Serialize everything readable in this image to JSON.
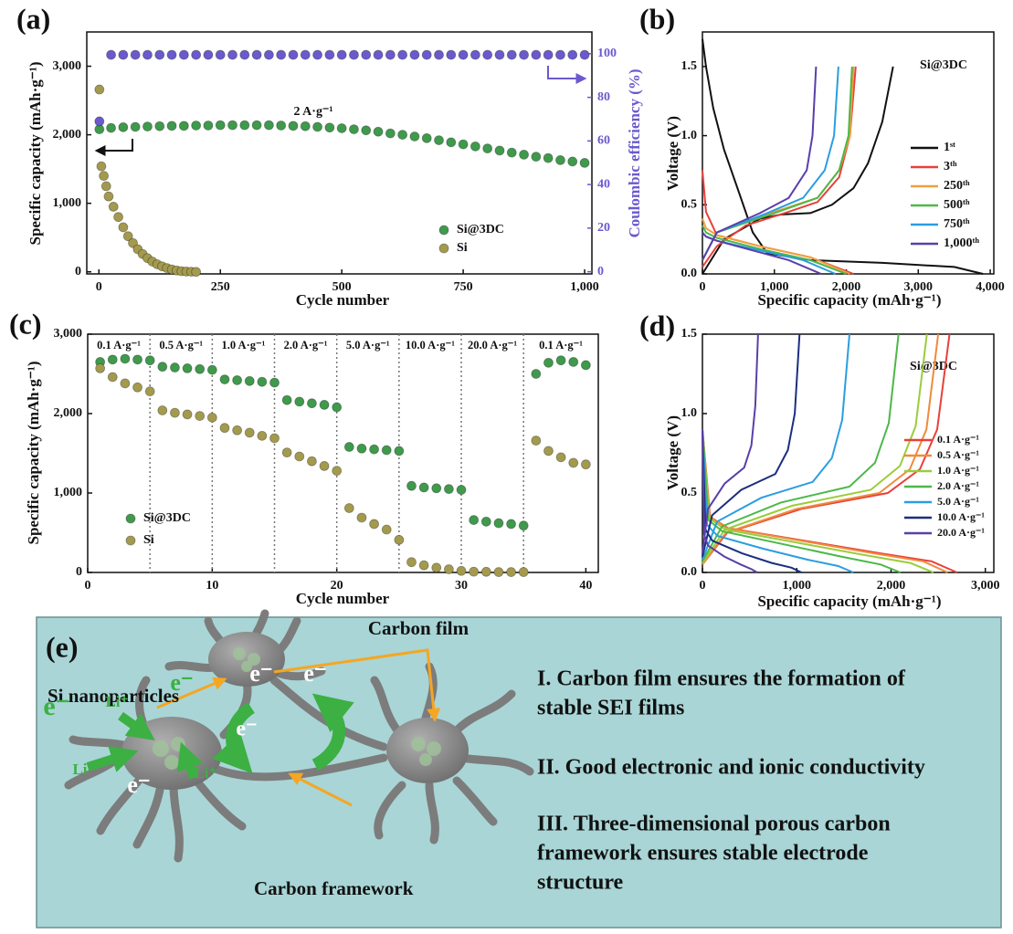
{
  "chart_data": [
    {
      "type": "scatter",
      "panel_label": "(a)",
      "xlabel": "Cycle number",
      "ylabel": "Specific capacity (mAh·g⁻¹)",
      "y2label": "Coulombic efficiency (%)",
      "annotation": "2 A·g⁻¹",
      "xlim": [
        -25,
        1015
      ],
      "ylim": [
        -30,
        3500
      ],
      "y2lim": [
        -1,
        110
      ],
      "xticks": [
        0,
        250,
        500,
        750,
        {
          "value": 1000,
          "label": "1,000"
        }
      ],
      "yticks": [
        0,
        {
          "value": 1000,
          "label": "1,000"
        },
        {
          "value": 2000,
          "label": "2,000"
        },
        {
          "value": 3000,
          "label": "3,000"
        }
      ],
      "y2ticks": [
        0,
        20,
        40,
        60,
        80,
        100
      ],
      "y2color": "#6a5acd",
      "series": [
        {
          "name": "Si@3DC",
          "color": "#3f9a4c",
          "x": [
            1,
            25,
            50,
            75,
            100,
            125,
            150,
            175,
            200,
            225,
            250,
            275,
            300,
            325,
            350,
            375,
            400,
            425,
            450,
            475,
            500,
            525,
            550,
            575,
            600,
            625,
            650,
            675,
            700,
            725,
            750,
            775,
            800,
            825,
            850,
            875,
            900,
            925,
            950,
            975,
            1000
          ],
          "values": [
            2080,
            2100,
            2110,
            2115,
            2120,
            2125,
            2130,
            2130,
            2135,
            2135,
            2140,
            2140,
            2140,
            2140,
            2140,
            2135,
            2130,
            2125,
            2115,
            2105,
            2095,
            2080,
            2065,
            2045,
            2020,
            2000,
            1975,
            1950,
            1920,
            1890,
            1860,
            1830,
            1800,
            1770,
            1740,
            1710,
            1680,
            1660,
            1630,
            1610,
            1590
          ]
        },
        {
          "name": "Si",
          "color": "#a39a4e",
          "x": [
            1,
            5,
            10,
            15,
            20,
            30,
            40,
            50,
            60,
            70,
            80,
            90,
            100,
            110,
            120,
            130,
            140,
            150,
            160,
            170,
            180,
            190,
            200
          ],
          "values": [
            2660,
            1540,
            1400,
            1250,
            1100,
            950,
            800,
            650,
            520,
            420,
            330,
            260,
            200,
            150,
            110,
            80,
            55,
            35,
            20,
            10,
            5,
            2,
            0
          ]
        },
        {
          "color": "#6a5acd",
          "axis": "y2",
          "x": [
            1,
            25,
            50,
            75,
            100,
            125,
            150,
            175,
            200,
            225,
            250,
            275,
            300,
            325,
            350,
            375,
            400,
            425,
            450,
            475,
            500,
            525,
            550,
            575,
            600,
            625,
            650,
            675,
            700,
            725,
            750,
            775,
            800,
            825,
            850,
            875,
            900,
            925,
            950,
            975,
            1000
          ],
          "values": [
            69,
            99.5,
            99.5,
            99.5,
            99.5,
            99.5,
            99.5,
            99.5,
            99.5,
            99.5,
            99.5,
            99.5,
            99.5,
            99.5,
            99.5,
            99.5,
            99.5,
            99.5,
            99.5,
            99.5,
            99.5,
            99.5,
            99.5,
            99.5,
            99.5,
            99.5,
            99.5,
            99.5,
            99.5,
            99.5,
            99.5,
            99.5,
            99.5,
            99.5,
            99.5,
            99.5,
            99.5,
            99.5,
            99.5,
            99.5,
            99.5
          ]
        }
      ]
    },
    {
      "type": "line",
      "panel_label": "(b)",
      "xlabel": "Specific capacity (mAh·g⁻¹)",
      "ylabel": "Voltage (V)",
      "annotation": "Si@3DC",
      "xlim": [
        0,
        4050
      ],
      "ylim": [
        0,
        1.75
      ],
      "xticks": [
        0,
        {
          "value": 1000,
          "label": "1,000"
        },
        {
          "value": 2000,
          "label": "2,000"
        },
        {
          "value": 3000,
          "label": "3,000"
        },
        {
          "value": 4000,
          "label": "4,000"
        }
      ],
      "yticks": [
        {
          "value": 0,
          "label": "0.0"
        },
        0.5,
        {
          "value": 1,
          "label": "1.0"
        },
        1.5
      ],
      "series": [
        {
          "name": "1ˢᵗ",
          "color": "#111111",
          "x": [
            0,
            50,
            150,
            300,
            500,
            700,
            900,
            1500,
            2500,
            3500,
            3900,
            null,
            0,
            300,
            800,
            1100,
            1500,
            1800,
            2100,
            2300,
            2500,
            2650
          ],
          "values": [
            1.7,
            1.5,
            1.2,
            0.9,
            0.6,
            0.3,
            0.15,
            0.1,
            0.08,
            0.05,
            0.0,
            null,
            0.0,
            0.25,
            0.4,
            0.43,
            0.44,
            0.5,
            0.62,
            0.8,
            1.1,
            1.5
          ]
        },
        {
          "name": "3ᵗʰ",
          "color": "#e8403a",
          "x": [
            0,
            50,
            200,
            800,
            1500,
            2100,
            null,
            0,
            200,
            600,
            1200,
            1600,
            1900,
            2050,
            2130
          ],
          "values": [
            0.75,
            0.45,
            0.28,
            0.2,
            0.12,
            0.0,
            null,
            0.05,
            0.2,
            0.35,
            0.45,
            0.52,
            0.7,
            1.0,
            1.5
          ]
        },
        {
          "name": "250ᵗʰ",
          "color": "#f0a040",
          "x": [
            0,
            50,
            200,
            800,
            1500,
            2050,
            null,
            0,
            200,
            1000,
            1600,
            1900,
            2050,
            2100
          ],
          "values": [
            0.4,
            0.33,
            0.28,
            0.2,
            0.12,
            0.0,
            null,
            0.1,
            0.3,
            0.45,
            0.55,
            0.75,
            1.0,
            1.5
          ]
        },
        {
          "name": "500ᵗʰ",
          "color": "#4cb848",
          "x": [
            0,
            50,
            200,
            800,
            1500,
            2000,
            null,
            0,
            200,
            1000,
            1600,
            1900,
            2030,
            2080
          ],
          "values": [
            0.35,
            0.3,
            0.26,
            0.18,
            0.1,
            0.0,
            null,
            0.1,
            0.3,
            0.44,
            0.55,
            0.75,
            1.0,
            1.5
          ]
        },
        {
          "name": "750ᵗʰ",
          "color": "#2a9ee0",
          "x": [
            0,
            50,
            200,
            800,
            1400,
            1850,
            null,
            0,
            200,
            900,
            1400,
            1700,
            1830,
            1890
          ],
          "values": [
            0.3,
            0.27,
            0.24,
            0.17,
            0.1,
            0.0,
            null,
            0.1,
            0.3,
            0.44,
            0.55,
            0.75,
            1.0,
            1.5
          ]
        },
        {
          "name": "1,000ᵗʰ",
          "color": "#5a3fa8",
          "x": [
            0,
            50,
            200,
            700,
            1200,
            1650,
            null,
            0,
            200,
            800,
            1200,
            1450,
            1530,
            1580
          ],
          "values": [
            0.3,
            0.27,
            0.24,
            0.17,
            0.1,
            0.0,
            null,
            0.1,
            0.3,
            0.44,
            0.55,
            0.75,
            1.0,
            1.5
          ]
        }
      ]
    },
    {
      "type": "scatter",
      "panel_label": "(c)",
      "xlabel": "Cycle number",
      "ylabel": "Specific capacity (mAh·g⁻¹)",
      "xlim": [
        0,
        41
      ],
      "ylim": [
        0,
        3000
      ],
      "xticks": [
        0,
        10,
        20,
        30,
        40
      ],
      "yticks": [
        0,
        {
          "value": 1000,
          "label": "1,000"
        },
        {
          "value": 2000,
          "label": "2,000"
        },
        {
          "value": 3000,
          "label": "3,000"
        }
      ],
      "dividers": [
        5,
        10,
        15,
        20,
        25,
        30,
        35
      ],
      "rate_labels": [
        "0.1 A·g⁻¹",
        "0.5 A·g⁻¹",
        "1.0 A·g⁻¹",
        "2.0 A·g⁻¹",
        "5.0 A·g⁻¹",
        "10.0 A·g⁻¹",
        "20.0 A·g⁻¹",
        "0.1 A·g⁻¹"
      ],
      "x": [
        1,
        2,
        3,
        4,
        5,
        6,
        7,
        8,
        9,
        10,
        11,
        12,
        13,
        14,
        15,
        16,
        17,
        18,
        19,
        20,
        21,
        22,
        23,
        24,
        25,
        26,
        27,
        28,
        29,
        30,
        31,
        32,
        33,
        34,
        35,
        36,
        37,
        38,
        39,
        40
      ],
      "series": [
        {
          "name": "Si@3DC",
          "color": "#3f9a4c",
          "values": [
            2650,
            2680,
            2690,
            2680,
            2670,
            2590,
            2580,
            2570,
            2560,
            2550,
            2430,
            2420,
            2410,
            2400,
            2390,
            2170,
            2150,
            2130,
            2110,
            2080,
            1580,
            1560,
            1550,
            1540,
            1530,
            1090,
            1070,
            1060,
            1050,
            1040,
            660,
            640,
            620,
            610,
            590,
            2500,
            2640,
            2670,
            2650,
            2610
          ]
        },
        {
          "name": "Si",
          "color": "#a39a4e",
          "values": [
            2570,
            2460,
            2380,
            2330,
            2280,
            2040,
            2010,
            1990,
            1970,
            1950,
            1820,
            1790,
            1760,
            1720,
            1690,
            1510,
            1460,
            1400,
            1340,
            1280,
            810,
            690,
            610,
            540,
            410,
            130,
            90,
            60,
            40,
            20,
            10,
            8,
            5,
            5,
            5,
            1660,
            1530,
            1450,
            1380,
            1360
          ]
        }
      ]
    },
    {
      "type": "line",
      "panel_label": "(d)",
      "xlabel": "Specific capacity (mAh·g⁻¹)",
      "ylabel": "Voltage (V)",
      "annotation": "Si@3DC",
      "xlim": [
        0,
        3090
      ],
      "ylim": [
        0,
        1.5
      ],
      "xticks": [
        0,
        {
          "value": 1000,
          "label": "1,000"
        },
        {
          "value": 2000,
          "label": "2,000"
        },
        {
          "value": 3000,
          "label": "3,000"
        }
      ],
      "yticks": [
        {
          "value": 0,
          "label": "0.0"
        },
        0.5,
        {
          "value": 1,
          "label": "1.0"
        },
        1.5
      ],
      "series": [
        {
          "name": "0.1 A·g⁻¹",
          "color": "#e8403a",
          "x": [
            0,
            81,
            270,
            1080,
            1890,
            2430,
            2700,
            null,
            0,
            262,
            1048,
            1965,
            2306,
            2489,
            2620
          ],
          "values": [
            0.9,
            0.35,
            0.28,
            0.2,
            0.12,
            0.07,
            0.0,
            null,
            0.05,
            0.25,
            0.4,
            0.5,
            0.65,
            0.9,
            1.5
          ]
        },
        {
          "name": "0.5 A·g⁻¹",
          "color": "#f08a3c",
          "x": [
            0,
            78,
            260,
            1040,
            1820,
            2340,
            2600,
            null,
            0,
            250,
            1000,
            1875,
            2200,
            2375,
            2500
          ],
          "values": [
            0.9,
            0.35,
            0.28,
            0.2,
            0.12,
            0.07,
            0.0,
            null,
            0.05,
            0.25,
            0.4,
            0.5,
            0.65,
            0.9,
            1.5
          ]
        },
        {
          "name": "1.0 A·g⁻¹",
          "color": "#9acd3c",
          "x": [
            0,
            74,
            245,
            980,
            1715,
            2205,
            2450,
            null,
            0,
            238,
            952,
            1785,
            2094,
            2261,
            2380
          ],
          "values": [
            0.9,
            0.34,
            0.27,
            0.19,
            0.11,
            0.06,
            0.0,
            null,
            0.06,
            0.27,
            0.42,
            0.52,
            0.67,
            0.92,
            1.5
          ]
        },
        {
          "name": "2.0 A·g⁻¹",
          "color": "#4cb848",
          "x": [
            0,
            63,
            210,
            840,
            1470,
            1890,
            2100,
            null,
            0,
            208,
            832,
            1560,
            1830,
            1976,
            2080
          ],
          "values": [
            0.9,
            0.33,
            0.26,
            0.18,
            0.1,
            0.05,
            0.0,
            null,
            0.07,
            0.29,
            0.44,
            0.54,
            0.69,
            0.94,
            1.5
          ]
        },
        {
          "name": "5.0 A·g⁻¹",
          "color": "#2a9ee0",
          "x": [
            0,
            48,
            160,
            640,
            1120,
            1440,
            1600,
            null,
            0,
            156,
            624,
            1170,
            1373,
            1482,
            1560
          ],
          "values": [
            0.9,
            0.3,
            0.23,
            0.15,
            0.08,
            0.04,
            0.0,
            null,
            0.08,
            0.32,
            0.47,
            0.57,
            0.72,
            0.96,
            1.5
          ]
        },
        {
          "name": "10.0 A·g⁻¹",
          "color": "#1a2f80",
          "x": [
            0,
            32,
            105,
            420,
            735,
            945,
            1050,
            null,
            0,
            103,
            412,
            773,
            906,
            979,
            1030
          ],
          "values": [
            0.9,
            0.27,
            0.2,
            0.12,
            0.06,
            0.03,
            0.0,
            null,
            0.1,
            0.36,
            0.52,
            0.62,
            0.77,
            1.0,
            1.5
          ]
        },
        {
          "name": "20.0 A·g⁻¹",
          "color": "#5a3fa8",
          "x": [
            0,
            17,
            58,
            232,
            406,
            522,
            580,
            null,
            0,
            59,
            236,
            443,
            519,
            561,
            590
          ],
          "values": [
            0.9,
            0.24,
            0.17,
            0.1,
            0.05,
            0.02,
            0.0,
            null,
            0.12,
            0.4,
            0.56,
            0.66,
            0.8,
            1.05,
            1.5
          ]
        }
      ]
    }
  ],
  "diagram": {
    "panel_label": "(e)",
    "carbon_film": "Carbon film",
    "si_nanoparticles": "Si nanoparticles",
    "carbon_framework": "Carbon framework",
    "electrons": [
      "e⁻",
      "e⁻",
      "e⁻",
      "e⁻",
      "e⁻",
      "e⁻"
    ],
    "lithium": [
      "Li⁺",
      "Li⁺",
      "Li⁺"
    ],
    "statements": [
      [
        "I. Carbon film ensures the formation of",
        "stable SEI films"
      ],
      [
        "II. Good electronic and ionic conductivity"
      ],
      [
        "III. Three-dimensional porous carbon",
        "framework ensures stable electrode",
        "structure"
      ]
    ]
  }
}
